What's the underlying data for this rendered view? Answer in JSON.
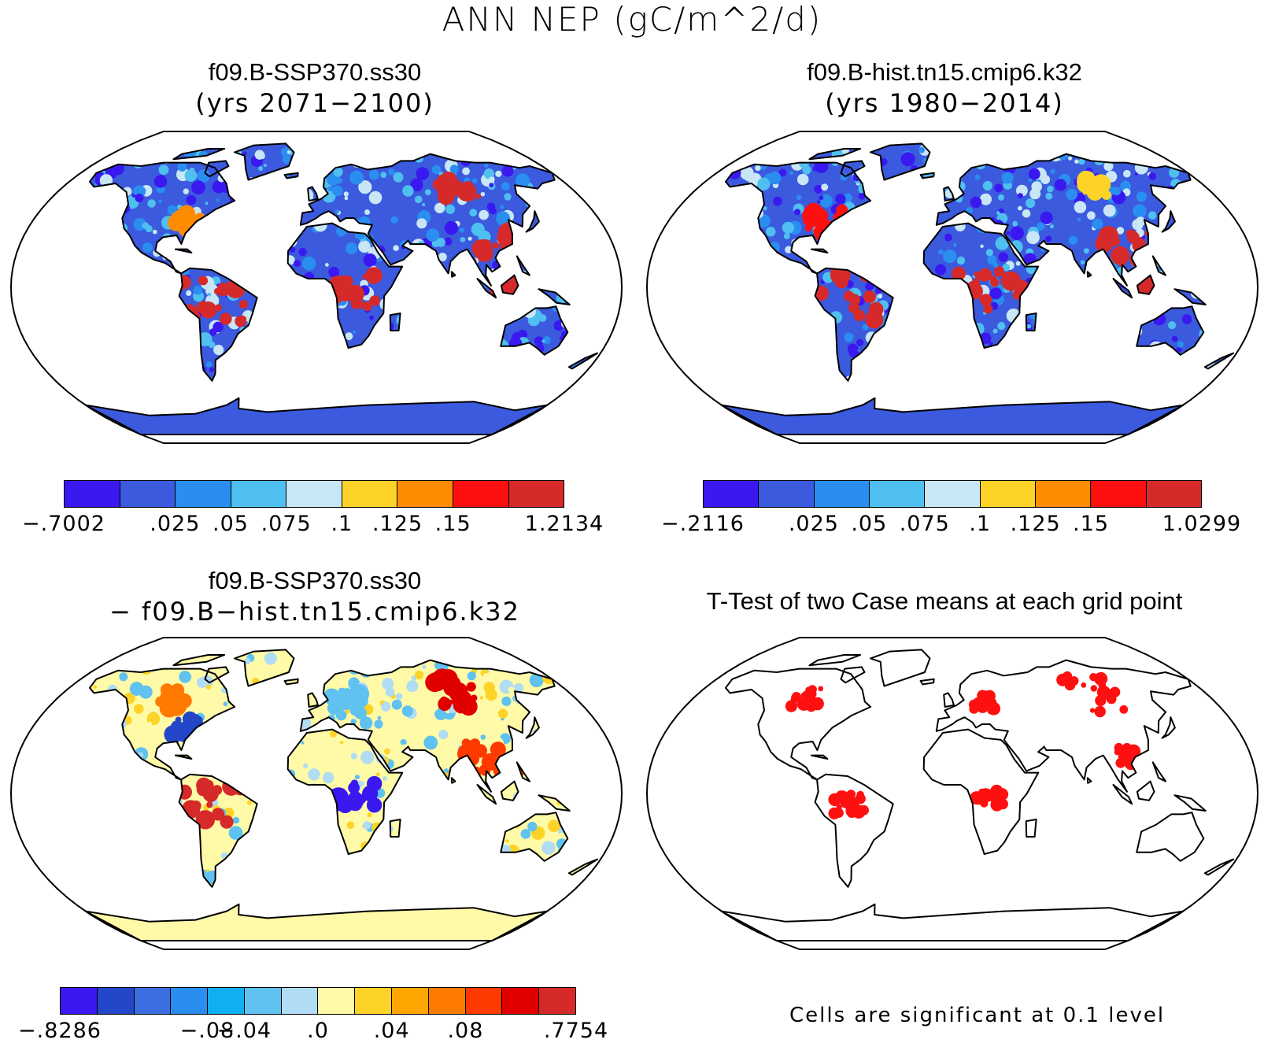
{
  "title": "ANN NEP (gC/m^2/d)",
  "panels": [
    {
      "id": "ssp370",
      "title": "f09.B-SSP370.ss30",
      "subtitle": "(yrs 2071−2100)",
      "colorbar": {
        "colors": [
          "#3a18f0",
          "#3b5ade",
          "#2a8ef0",
          "#4fbff0",
          "#c8e6f6",
          "#fed327",
          "#ff8c00",
          "#ff1010",
          "#d62a2a"
        ],
        "ticks": [
          "−.7002",
          ".025",
          ".05",
          ".075",
          ".1",
          ".125",
          ".15",
          "1.2134"
        ]
      }
    },
    {
      "id": "hist",
      "title": "f09.B-hist.tn15.cmip6.k32",
      "subtitle": "(yrs 1980−2014)",
      "colorbar": {
        "colors": [
          "#3a18f0",
          "#3b5ade",
          "#2a8ef0",
          "#4fbff0",
          "#c8e6f6",
          "#fed327",
          "#ff8c00",
          "#ff1010",
          "#d62a2a"
        ],
        "ticks": [
          "−.2116",
          ".025",
          ".05",
          ".075",
          ".1",
          ".125",
          ".15",
          "1.0299"
        ]
      }
    },
    {
      "id": "diff",
      "title": "f09.B-SSP370.ss30",
      "subtitle": "− f09.B−hist.tn15.cmip6.k32",
      "colorbar": {
        "colors": [
          "#3a18f0",
          "#2446c8",
          "#3b6ee0",
          "#2a8ef0",
          "#10b0f0",
          "#5fc2f0",
          "#b0dcf4",
          "#fffaa8",
          "#fed327",
          "#ffa500",
          "#ff7a00",
          "#ff3a00",
          "#e00000",
          "#d62a2a"
        ],
        "ticks": [
          "−.8286",
          "−.08",
          "−.04",
          ".0",
          ".04",
          ".08",
          ".7754"
        ]
      }
    },
    {
      "id": "ttest",
      "title": "T-Test of two Case means at each grid point",
      "note": "Cells are significant at 0.1 level"
    }
  ]
}
